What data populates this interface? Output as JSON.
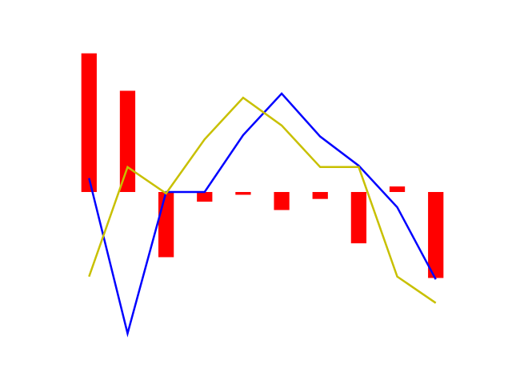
{
  "chart_data": {
    "type": "bar",
    "title": "",
    "xlabel": "",
    "ylabel": "",
    "axes_visible": false,
    "grid": false,
    "legend": "none",
    "x": [
      0,
      1,
      2,
      3,
      4,
      5,
      6,
      7,
      8,
      9
    ],
    "ylim": [
      -1.05,
      1.05
    ],
    "series": [
      {
        "type": "bar",
        "color": "#ff0000",
        "values": [
          1.0,
          0.73,
          -0.47,
          -0.07,
          -0.02,
          -0.13,
          -0.05,
          -0.37,
          0.04,
          -0.62
        ]
      },
      {
        "type": "line",
        "color": "#0000ff",
        "values": [
          0.1,
          -1.02,
          0.0,
          0.0,
          0.41,
          0.71,
          0.4,
          0.19,
          -0.11,
          -0.63
        ]
      },
      {
        "type": "line",
        "color": "#c8c000",
        "values": [
          -0.61,
          0.18,
          -0.01,
          0.38,
          0.68,
          0.48,
          0.18,
          0.18,
          -0.61,
          -0.8
        ]
      }
    ]
  }
}
